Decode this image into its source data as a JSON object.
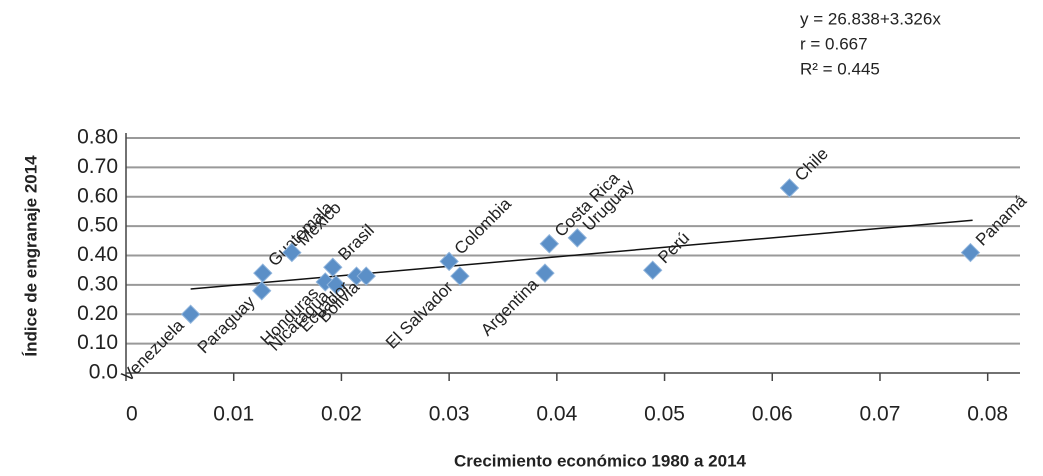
{
  "chart_data": {
    "type": "scatter",
    "annotations": [
      "y = 26.838+3.326x",
      "r = 0.667",
      "R² = 0.445"
    ],
    "x_label": "Crecimiento económico 1980 a 2014",
    "y_label": "Índice de engranaje 2014",
    "color": "#5b8fc7",
    "grid": true,
    "xlim": [
      0,
      0.083
    ],
    "ylim": [
      0,
      0.8
    ],
    "xticks": [
      0,
      0.01,
      0.02,
      0.03,
      0.04,
      0.05,
      0.06,
      0.07,
      0.08
    ],
    "yticks": [
      {
        "value": 0,
        "label": "0.0"
      },
      {
        "value": 0.1,
        "label": "0.10"
      },
      {
        "value": 0.2,
        "label": "0.20"
      },
      {
        "value": 0.3,
        "label": "0.30"
      },
      {
        "value": 0.4,
        "label": "0.40"
      },
      {
        "value": 0.5,
        "label": "0.50"
      },
      {
        "value": 0.6,
        "label": "0.60"
      },
      {
        "value": 0.7,
        "label": "0.70"
      },
      {
        "value": 0.8,
        "label": "0.80"
      }
    ],
    "labels": [
      "Venezuela",
      "Paraguay",
      "Guatemala",
      "México",
      "Honduras",
      "Nicaragua",
      "Brasil",
      "Ecuador",
      "Bolivia",
      "Colombia",
      "El Salvador",
      "Argentina",
      "Costa Rica",
      "Uruguay",
      "Perú",
      "Chile",
      "Panamá"
    ],
    "x": [
      0.006,
      0.0126,
      0.0127,
      0.0154,
      0.0185,
      0.0195,
      0.0192,
      0.0214,
      0.0223,
      0.03,
      0.031,
      0.0389,
      0.0393,
      0.0419,
      0.0489,
      0.0616,
      0.0784
    ],
    "values": [
      0.2,
      0.28,
      0.34,
      0.41,
      0.31,
      0.3,
      0.36,
      0.33,
      0.33,
      0.38,
      0.33,
      0.34,
      0.44,
      0.46,
      0.35,
      0.63,
      0.41
    ],
    "trendline": {
      "x": [
        0.006,
        0.0786
      ],
      "y": [
        0.286,
        0.52
      ]
    }
  }
}
